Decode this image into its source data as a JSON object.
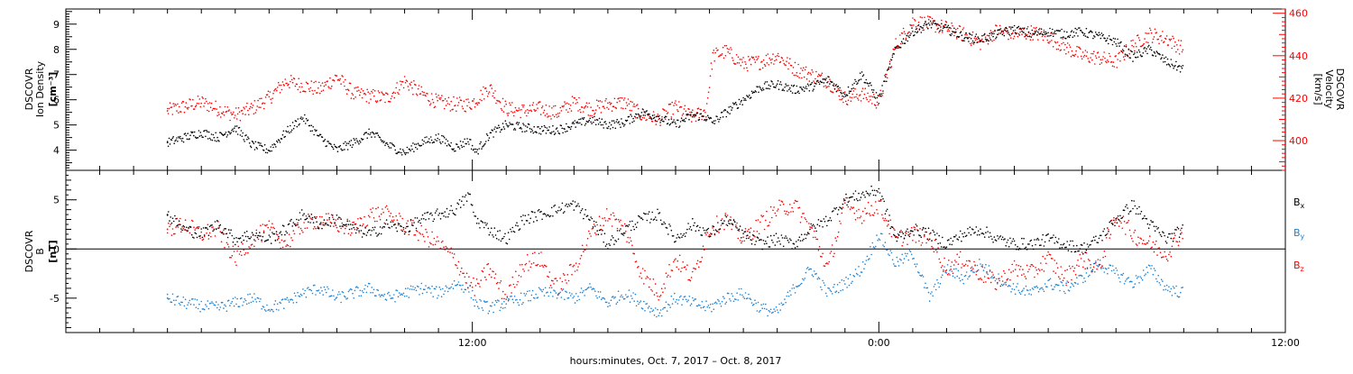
{
  "footer": {
    "xlabel": "hours:minutes, Oct.  7, 2017 – Oct.  8, 2017"
  },
  "colors": {
    "black": "#000000",
    "red": "#ff0000",
    "blue": "#1e82d2"
  },
  "chart_data": [
    {
      "type": "scatter",
      "panel": "plasma",
      "ylabel": [
        "DSCOVR",
        "Ion Density",
        "[cm⁻³]"
      ],
      "y2label": [
        "DSCOVR",
        "Velocity",
        "[km/s]"
      ],
      "x_range_hours": [
        3.0,
        33.0
      ],
      "ylim": [
        3.2,
        9.6
      ],
      "y2lim": [
        386,
        462
      ],
      "yticks": [
        4,
        5,
        6,
        7,
        8,
        9
      ],
      "y2ticks": [
        400,
        420,
        440,
        460
      ],
      "xticks": [
        {
          "hour": 12,
          "label": "12:00"
        },
        {
          "hour": 24,
          "label": "0:00"
        },
        {
          "hour": 36,
          "label": "12:00"
        }
      ],
      "series": [
        {
          "axis": "left",
          "color": "#000000",
          "x": [
            3.0,
            3.5,
            4.0,
            4.5,
            5.0,
            5.5,
            6.0,
            6.5,
            7.0,
            7.5,
            8.0,
            8.5,
            9.0,
            9.5,
            10.0,
            10.5,
            11.0,
            11.5,
            11.9,
            12.1,
            12.5,
            13.0,
            13.5,
            14.0,
            14.5,
            15.0,
            15.5,
            16.0,
            16.5,
            17.0,
            17.5,
            18.0,
            18.5,
            18.9,
            19.1,
            19.5,
            20.0,
            20.5,
            21.0,
            21.5,
            22.0,
            22.5,
            23.0,
            23.5,
            24.0,
            24.5,
            25.0,
            25.5,
            26.0,
            26.5,
            27.0,
            27.5,
            28.0,
            28.5,
            29.0,
            29.5,
            30.0,
            30.5,
            31.0,
            31.5,
            32.0,
            32.5,
            33.0
          ],
          "values": [
            4.3,
            4.5,
            4.7,
            4.5,
            4.9,
            4.2,
            4.0,
            4.7,
            5.3,
            4.5,
            4.0,
            4.3,
            4.7,
            4.2,
            3.9,
            4.3,
            4.5,
            4.1,
            4.4,
            3.9,
            4.6,
            5.0,
            4.9,
            4.8,
            4.8,
            5.0,
            5.2,
            5.0,
            5.1,
            5.5,
            5.3,
            5.0,
            5.4,
            5.3,
            5.1,
            5.5,
            6.0,
            6.5,
            6.6,
            6.4,
            6.5,
            6.8,
            6.2,
            7.0,
            6.0,
            8.0,
            8.7,
            9.0,
            8.8,
            8.5,
            8.4,
            8.6,
            8.8,
            8.6,
            8.7,
            8.6,
            8.7,
            8.5,
            8.3,
            7.7,
            8.0,
            7.5,
            7.2
          ]
        },
        {
          "axis": "right",
          "color": "#ff0000",
          "x": [
            3.0,
            3.5,
            4.0,
            4.5,
            5.0,
            5.5,
            6.0,
            6.5,
            7.0,
            7.5,
            8.0,
            8.5,
            9.0,
            9.5,
            10.0,
            10.5,
            11.0,
            11.5,
            11.9,
            12.1,
            12.5,
            13.0,
            13.5,
            14.0,
            14.5,
            15.0,
            15.5,
            16.0,
            16.5,
            17.0,
            17.5,
            18.0,
            18.5,
            18.9,
            19.1,
            19.5,
            20.0,
            20.5,
            21.0,
            21.5,
            22.0,
            22.5,
            23.0,
            23.5,
            24.0,
            24.5,
            25.0,
            25.5,
            26.0,
            26.5,
            27.0,
            27.5,
            28.0,
            28.5,
            29.0,
            29.5,
            30.0,
            30.5,
            31.0,
            31.5,
            32.0,
            32.5,
            33.0
          ],
          "values": [
            414,
            416,
            418,
            415,
            412,
            415,
            420,
            428,
            426,
            424,
            430,
            422,
            421,
            420,
            428,
            422,
            418,
            417,
            417,
            419,
            425,
            415,
            414,
            415,
            413,
            418,
            415,
            417,
            418,
            412,
            410,
            416,
            411,
            414,
            440,
            442,
            436,
            437,
            440,
            434,
            431,
            428,
            420,
            422,
            418,
            445,
            456,
            455,
            453,
            450,
            446,
            452,
            450,
            451,
            449,
            444,
            440,
            439,
            437,
            445,
            450,
            448,
            443
          ]
        }
      ]
    },
    {
      "type": "scatter",
      "panel": "magnetic-field",
      "ylabel": [
        "DSCOVR",
        "B",
        "[nT]"
      ],
      "x_range_hours": [
        3.0,
        33.0
      ],
      "ylim": [
        -8.5,
        8.0
      ],
      "yticks": [
        -5,
        0,
        5
      ],
      "zero_line": true,
      "series": [
        {
          "name": "Bx",
          "color": "#000000",
          "x": [
            3.0,
            3.5,
            4.0,
            4.5,
            5.0,
            5.5,
            6.0,
            6.5,
            7.0,
            7.5,
            8.0,
            8.5,
            9.0,
            9.5,
            10.0,
            10.5,
            11.0,
            11.5,
            11.9,
            12.1,
            12.5,
            13.0,
            13.5,
            14.0,
            14.5,
            15.0,
            15.5,
            16.0,
            16.5,
            17.0,
            17.5,
            18.0,
            18.5,
            19.0,
            19.5,
            20.0,
            20.5,
            21.0,
            21.5,
            22.0,
            22.5,
            23.0,
            23.5,
            24.0,
            24.5,
            25.0,
            25.5,
            26.0,
            26.5,
            27.0,
            27.5,
            28.0,
            28.5,
            29.0,
            29.5,
            30.0,
            30.5,
            31.0,
            31.5,
            32.0,
            32.5,
            33.0
          ],
          "values": [
            3.5,
            2.0,
            1.5,
            2.5,
            1.0,
            1.5,
            1.0,
            2.0,
            3.5,
            2.5,
            3.0,
            2.0,
            1.5,
            2.5,
            2.0,
            3.0,
            3.5,
            4.0,
            5.5,
            3.0,
            2.0,
            1.0,
            3.0,
            3.5,
            4.0,
            4.5,
            3.0,
            0.5,
            2.0,
            3.0,
            3.5,
            1.0,
            2.5,
            1.5,
            3.0,
            1.5,
            0.5,
            1.0,
            0.5,
            2.0,
            3.0,
            5.0,
            5.5,
            6.0,
            1.0,
            2.0,
            1.5,
            0.5,
            1.5,
            2.0,
            1.0,
            0.5,
            0.5,
            1.0,
            0.5,
            0.0,
            1.0,
            3.0,
            4.5,
            2.5,
            1.0,
            2.0
          ]
        },
        {
          "name": "By",
          "color": "#1e82d2",
          "x": [
            3.0,
            3.5,
            4.0,
            4.5,
            5.0,
            5.5,
            6.0,
            6.5,
            7.0,
            7.5,
            8.0,
            8.5,
            9.0,
            9.5,
            10.0,
            10.5,
            11.0,
            11.5,
            11.9,
            12.1,
            12.5,
            13.0,
            13.5,
            14.0,
            14.5,
            15.0,
            15.5,
            16.0,
            16.5,
            17.0,
            17.5,
            18.0,
            18.5,
            19.0,
            19.5,
            20.0,
            20.5,
            21.0,
            21.5,
            22.0,
            22.5,
            23.0,
            23.5,
            24.0,
            24.5,
            25.0,
            25.5,
            26.0,
            26.5,
            27.0,
            27.5,
            28.0,
            28.5,
            29.0,
            29.5,
            30.0,
            30.5,
            31.0,
            31.5,
            32.0,
            32.5,
            33.0
          ],
          "values": [
            -5.0,
            -5.5,
            -5.8,
            -6.0,
            -5.5,
            -5.0,
            -6.0,
            -5.5,
            -4.5,
            -4.0,
            -5.0,
            -4.5,
            -4.0,
            -5.0,
            -4.5,
            -4.0,
            -4.5,
            -3.5,
            -4.0,
            -5.5,
            -6.0,
            -5.5,
            -5.0,
            -4.5,
            -4.5,
            -5.0,
            -4.0,
            -5.5,
            -4.5,
            -5.5,
            -6.5,
            -5.0,
            -5.5,
            -6.0,
            -5.0,
            -4.5,
            -6.0,
            -6.5,
            -4.0,
            -2.0,
            -4.5,
            -3.5,
            -2.0,
            1.5,
            -1.5,
            -0.5,
            -5.0,
            -2.0,
            -3.0,
            -1.5,
            -3.0,
            -4.0,
            -4.5,
            -3.5,
            -4.0,
            -3.0,
            -1.5,
            -2.5,
            -3.5,
            -2.0,
            -4.0,
            -4.5
          ]
        },
        {
          "name": "Bz",
          "color": "#ff0000",
          "x": [
            3.0,
            3.5,
            4.0,
            4.5,
            5.0,
            5.5,
            6.0,
            6.5,
            7.0,
            7.5,
            8.0,
            8.5,
            9.0,
            9.5,
            10.0,
            10.5,
            11.0,
            11.5,
            11.9,
            12.1,
            12.5,
            13.0,
            13.5,
            14.0,
            14.5,
            15.0,
            15.5,
            16.0,
            16.5,
            17.0,
            17.5,
            18.0,
            18.5,
            19.0,
            19.5,
            20.0,
            20.5,
            21.0,
            21.5,
            22.0,
            22.5,
            23.0,
            23.5,
            24.0,
            24.5,
            25.0,
            25.5,
            26.0,
            26.5,
            27.0,
            27.5,
            28.0,
            28.5,
            29.0,
            29.5,
            30.0,
            30.5,
            31.0,
            31.5,
            32.0,
            32.5,
            33.0
          ],
          "values": [
            2.0,
            2.5,
            1.5,
            2.0,
            -1.0,
            1.0,
            2.0,
            0.5,
            2.5,
            3.0,
            2.5,
            2.0,
            3.5,
            3.5,
            2.5,
            1.5,
            0.5,
            -1.0,
            -3.5,
            -4.0,
            -2.0,
            -5.0,
            -1.5,
            -1.0,
            -4.0,
            -2.0,
            1.5,
            3.5,
            2.0,
            -2.5,
            -4.5,
            -1.0,
            -3.0,
            2.0,
            3.0,
            1.0,
            2.5,
            4.0,
            4.5,
            2.0,
            -2.0,
            4.5,
            3.5,
            4.5,
            1.0,
            1.5,
            1.0,
            -2.0,
            -1.0,
            -2.5,
            -3.5,
            -2.0,
            -2.5,
            -1.0,
            -3.0,
            -1.0,
            -2.0,
            3.5,
            1.5,
            0.5,
            -0.5,
            2.0
          ]
        }
      ],
      "legend": {
        "placement": "right",
        "entries": [
          {
            "base": "B",
            "sub": "x",
            "color": "#000000"
          },
          {
            "base": "B",
            "sub": "y",
            "color": "#1e82d2"
          },
          {
            "base": "B",
            "sub": "z",
            "color": "#ff0000"
          }
        ]
      }
    }
  ]
}
